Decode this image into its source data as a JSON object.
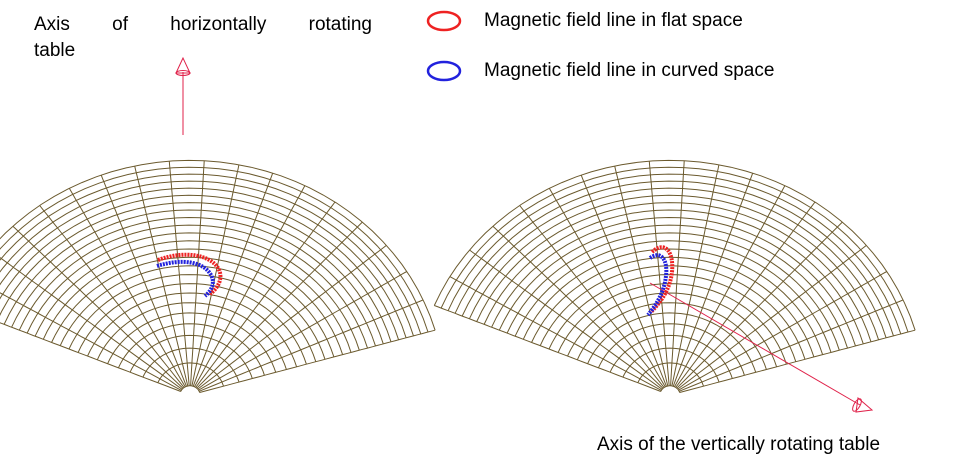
{
  "labels": {
    "horizontal_axis_words": [
      "Axis",
      "of",
      "horizontally",
      "rotating"
    ],
    "horizontal_axis_line2": "table",
    "vertical_axis": "Axis of the vertically rotating table"
  },
  "legend": [
    {
      "label": "Magnetic field line in flat space",
      "color": "#ee2222"
    },
    {
      "label": "Magnetic field line in curved space",
      "color": "#2222dd"
    }
  ],
  "colors": {
    "mesh": "#6b5a2e",
    "axis": "#e0224a",
    "flat_line": "#ee2222",
    "curved_line": "#2222dd"
  }
}
